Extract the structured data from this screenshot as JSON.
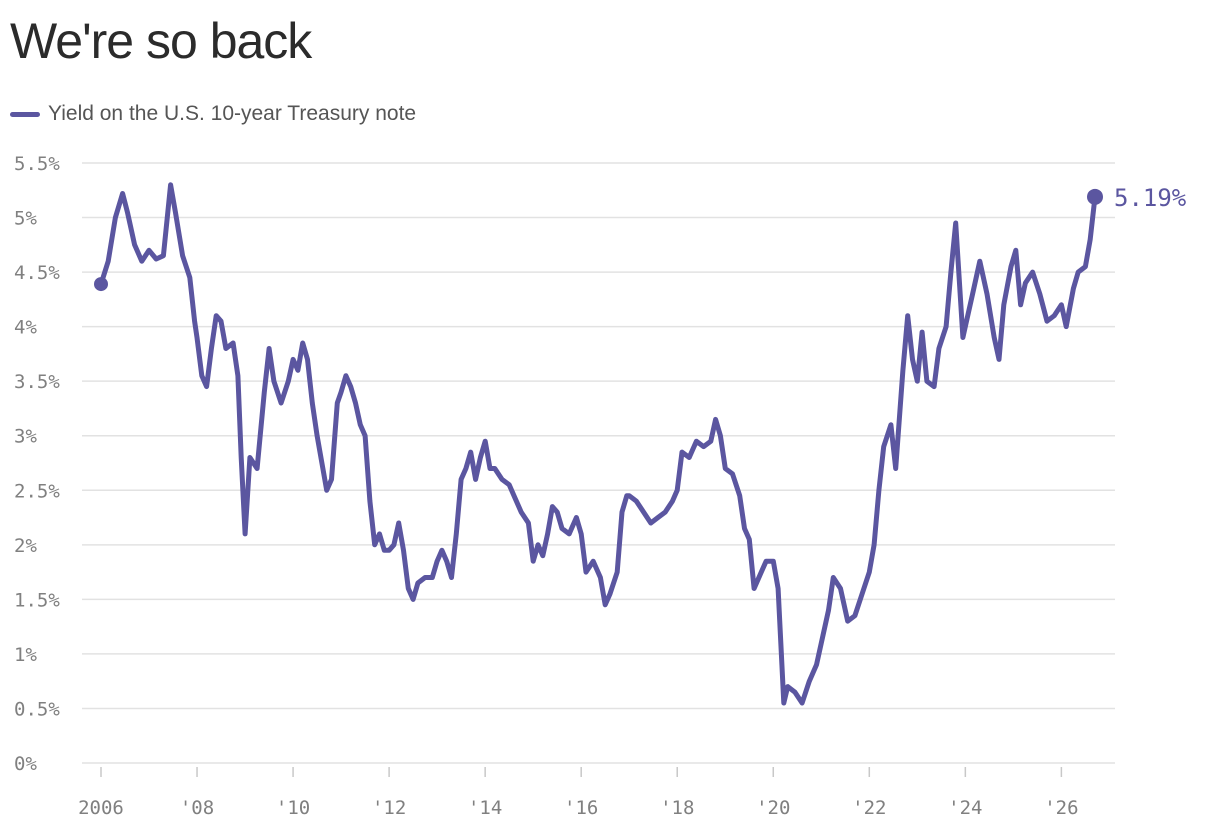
{
  "title": "We're so back",
  "legend": {
    "label": "Yield on the U.S. 10-year Treasury note"
  },
  "colors": {
    "series": "#5b56a0",
    "grid": "#e2e2e2",
    "axis_text": "#808080"
  },
  "end_label": "5.19%",
  "chart_data": {
    "type": "line",
    "title": "We're so back",
    "xlabel": "",
    "ylabel": "",
    "xlim": [
      2006,
      2026.7
    ],
    "ylim": [
      0,
      5.5
    ],
    "grid": true,
    "legend_placement": "top-left",
    "y_ticks": [
      0,
      0.5,
      1,
      1.5,
      2,
      2.5,
      3,
      3.5,
      4,
      4.5,
      5,
      5.5
    ],
    "y_tick_labels": [
      "0%",
      "0.5%",
      "1%",
      "1.5%",
      "2%",
      "2.5%",
      "3%",
      "3.5%",
      "4%",
      "4.5%",
      "5%",
      "5.5%"
    ],
    "x_ticks": [
      2006,
      2008,
      2010,
      2012,
      2014,
      2016,
      2018,
      2020,
      2022,
      2024,
      2026
    ],
    "x_tick_labels": [
      "2006",
      "'08",
      "'10",
      "'12",
      "'14",
      "'16",
      "'18",
      "'20",
      "'22",
      "'24",
      "'26"
    ],
    "series": [
      {
        "name": "Yield on the U.S. 10-year Treasury note",
        "points": [
          [
            2006.0,
            4.39
          ],
          [
            2006.15,
            4.6
          ],
          [
            2006.3,
            5.0
          ],
          [
            2006.45,
            5.22
          ],
          [
            2006.55,
            5.05
          ],
          [
            2006.7,
            4.75
          ],
          [
            2006.85,
            4.6
          ],
          [
            2007.0,
            4.7
          ],
          [
            2007.15,
            4.62
          ],
          [
            2007.3,
            4.65
          ],
          [
            2007.45,
            5.3
          ],
          [
            2007.55,
            5.05
          ],
          [
            2007.7,
            4.65
          ],
          [
            2007.85,
            4.45
          ],
          [
            2007.95,
            4.05
          ],
          [
            2008.0,
            3.9
          ],
          [
            2008.1,
            3.55
          ],
          [
            2008.2,
            3.45
          ],
          [
            2008.3,
            3.8
          ],
          [
            2008.4,
            4.1
          ],
          [
            2008.5,
            4.05
          ],
          [
            2008.6,
            3.8
          ],
          [
            2008.75,
            3.85
          ],
          [
            2008.85,
            3.55
          ],
          [
            2008.92,
            2.8
          ],
          [
            2009.0,
            2.1
          ],
          [
            2009.1,
            2.8
          ],
          [
            2009.25,
            2.7
          ],
          [
            2009.4,
            3.4
          ],
          [
            2009.5,
            3.8
          ],
          [
            2009.6,
            3.5
          ],
          [
            2009.75,
            3.3
          ],
          [
            2009.9,
            3.5
          ],
          [
            2010.0,
            3.7
          ],
          [
            2010.1,
            3.6
          ],
          [
            2010.2,
            3.85
          ],
          [
            2010.3,
            3.7
          ],
          [
            2010.4,
            3.3
          ],
          [
            2010.5,
            3.0
          ],
          [
            2010.6,
            2.75
          ],
          [
            2010.7,
            2.5
          ],
          [
            2010.8,
            2.6
          ],
          [
            2010.92,
            3.3
          ],
          [
            2011.0,
            3.4
          ],
          [
            2011.1,
            3.55
          ],
          [
            2011.2,
            3.45
          ],
          [
            2011.3,
            3.3
          ],
          [
            2011.4,
            3.1
          ],
          [
            2011.5,
            3.0
          ],
          [
            2011.6,
            2.4
          ],
          [
            2011.7,
            2.0
          ],
          [
            2011.8,
            2.1
          ],
          [
            2011.9,
            1.95
          ],
          [
            2012.0,
            1.95
          ],
          [
            2012.1,
            2.0
          ],
          [
            2012.2,
            2.2
          ],
          [
            2012.3,
            1.95
          ],
          [
            2012.4,
            1.6
          ],
          [
            2012.5,
            1.5
          ],
          [
            2012.6,
            1.65
          ],
          [
            2012.75,
            1.7
          ],
          [
            2012.9,
            1.7
          ],
          [
            2013.0,
            1.85
          ],
          [
            2013.1,
            1.95
          ],
          [
            2013.2,
            1.85
          ],
          [
            2013.3,
            1.7
          ],
          [
            2013.4,
            2.1
          ],
          [
            2013.5,
            2.6
          ],
          [
            2013.6,
            2.7
          ],
          [
            2013.7,
            2.85
          ],
          [
            2013.8,
            2.6
          ],
          [
            2013.9,
            2.8
          ],
          [
            2014.0,
            2.95
          ],
          [
            2014.1,
            2.7
          ],
          [
            2014.2,
            2.7
          ],
          [
            2014.35,
            2.6
          ],
          [
            2014.5,
            2.55
          ],
          [
            2014.6,
            2.45
          ],
          [
            2014.75,
            2.3
          ],
          [
            2014.9,
            2.2
          ],
          [
            2015.0,
            1.85
          ],
          [
            2015.1,
            2.0
          ],
          [
            2015.2,
            1.9
          ],
          [
            2015.3,
            2.1
          ],
          [
            2015.4,
            2.35
          ],
          [
            2015.5,
            2.3
          ],
          [
            2015.6,
            2.15
          ],
          [
            2015.75,
            2.1
          ],
          [
            2015.9,
            2.25
          ],
          [
            2016.0,
            2.1
          ],
          [
            2016.1,
            1.75
          ],
          [
            2016.25,
            1.85
          ],
          [
            2016.4,
            1.7
          ],
          [
            2016.5,
            1.45
          ],
          [
            2016.6,
            1.55
          ],
          [
            2016.75,
            1.75
          ],
          [
            2016.85,
            2.3
          ],
          [
            2016.95,
            2.45
          ],
          [
            2017.0,
            2.45
          ],
          [
            2017.15,
            2.4
          ],
          [
            2017.3,
            2.3
          ],
          [
            2017.45,
            2.2
          ],
          [
            2017.6,
            2.25
          ],
          [
            2017.75,
            2.3
          ],
          [
            2017.9,
            2.4
          ],
          [
            2018.0,
            2.5
          ],
          [
            2018.1,
            2.85
          ],
          [
            2018.25,
            2.8
          ],
          [
            2018.4,
            2.95
          ],
          [
            2018.55,
            2.9
          ],
          [
            2018.7,
            2.95
          ],
          [
            2018.8,
            3.15
          ],
          [
            2018.9,
            3.0
          ],
          [
            2019.0,
            2.7
          ],
          [
            2019.15,
            2.65
          ],
          [
            2019.3,
            2.45
          ],
          [
            2019.4,
            2.15
          ],
          [
            2019.5,
            2.05
          ],
          [
            2019.6,
            1.6
          ],
          [
            2019.7,
            1.7
          ],
          [
            2019.85,
            1.85
          ],
          [
            2020.0,
            1.85
          ],
          [
            2020.1,
            1.6
          ],
          [
            2020.18,
            0.9
          ],
          [
            2020.22,
            0.55
          ],
          [
            2020.3,
            0.7
          ],
          [
            2020.45,
            0.65
          ],
          [
            2020.6,
            0.55
          ],
          [
            2020.75,
            0.75
          ],
          [
            2020.9,
            0.9
          ],
          [
            2021.0,
            1.1
          ],
          [
            2021.15,
            1.4
          ],
          [
            2021.25,
            1.7
          ],
          [
            2021.4,
            1.6
          ],
          [
            2021.55,
            1.3
          ],
          [
            2021.7,
            1.35
          ],
          [
            2021.85,
            1.55
          ],
          [
            2022.0,
            1.75
          ],
          [
            2022.1,
            2.0
          ],
          [
            2022.2,
            2.5
          ],
          [
            2022.3,
            2.9
          ],
          [
            2022.45,
            3.1
          ],
          [
            2022.55,
            2.7
          ],
          [
            2022.7,
            3.6
          ],
          [
            2022.8,
            4.1
          ],
          [
            2022.9,
            3.7
          ],
          [
            2023.0,
            3.5
          ],
          [
            2023.1,
            3.95
          ],
          [
            2023.2,
            3.5
          ],
          [
            2023.35,
            3.45
          ],
          [
            2023.45,
            3.8
          ],
          [
            2023.6,
            4.0
          ],
          [
            2023.7,
            4.5
          ],
          [
            2023.8,
            4.95
          ],
          [
            2023.85,
            4.6
          ],
          [
            2023.95,
            3.9
          ],
          [
            2024.0,
            4.0
          ],
          [
            2024.15,
            4.3
          ],
          [
            2024.3,
            4.6
          ],
          [
            2024.45,
            4.3
          ],
          [
            2024.6,
            3.9
          ],
          [
            2024.7,
            3.7
          ],
          [
            2024.8,
            4.2
          ],
          [
            2024.95,
            4.55
          ],
          [
            2025.05,
            4.7
          ],
          [
            2025.15,
            4.2
          ],
          [
            2025.25,
            4.4
          ],
          [
            2025.4,
            4.5
          ],
          [
            2025.55,
            4.3
          ],
          [
            2025.7,
            4.05
          ],
          [
            2025.85,
            4.1
          ],
          [
            2026.0,
            4.2
          ],
          [
            2026.1,
            4.0
          ],
          [
            2026.25,
            4.35
          ],
          [
            2026.35,
            4.5
          ],
          [
            2026.5,
            4.55
          ],
          [
            2026.6,
            4.8
          ],
          [
            2026.7,
            5.19
          ]
        ]
      }
    ]
  }
}
